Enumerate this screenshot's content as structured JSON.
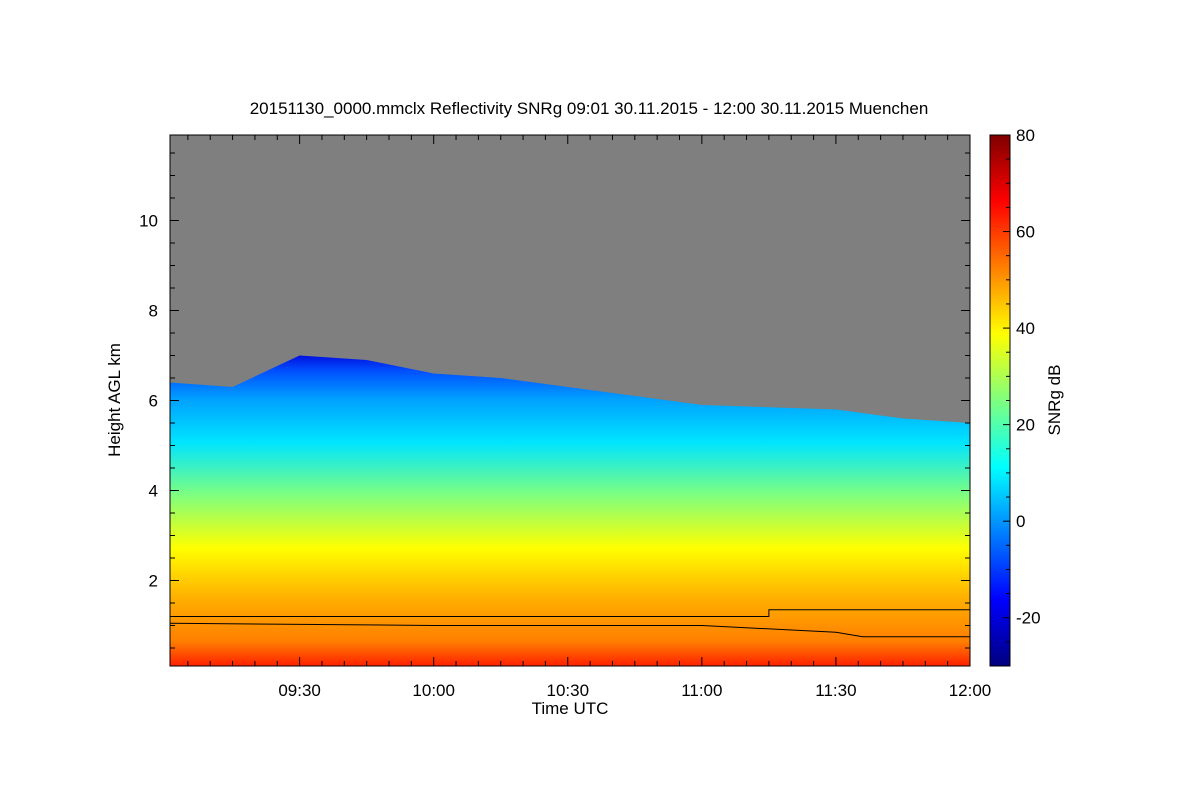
{
  "chart_data": {
    "type": "heatmap",
    "title": "20151130_0000.mmclx Reflectivity SNRg   09:01 30.11.2015 - 12:00 30.11.2015 Muenchen",
    "xlabel": "Time UTC",
    "ylabel": "Height AGL km",
    "colorbar_label": "SNRg dB",
    "x_range": [
      "09:01",
      "12:00"
    ],
    "y_range": [
      0.1,
      11.9
    ],
    "x_ticks": [
      "09:30",
      "10:00",
      "10:30",
      "11:00",
      "11:30",
      "12:00"
    ],
    "y_ticks": [
      "2",
      "4",
      "6",
      "8",
      "10"
    ],
    "y_tick_values": [
      2,
      4,
      6,
      8,
      10
    ],
    "colorbar_range": [
      -30,
      80
    ],
    "colorbar_ticks": [
      "-20",
      "0",
      "20",
      "40",
      "60",
      "80"
    ],
    "colorbar_tick_values": [
      -20,
      0,
      20,
      40,
      60,
      80
    ],
    "colorscale": [
      "#00007f",
      "#0000ff",
      "#007fff",
      "#00ffff",
      "#7fff7f",
      "#ffff00",
      "#ff7f00",
      "#ff0000",
      "#7f0000"
    ],
    "no_signal_color": "#7f7f7f",
    "cloud_top_km": {
      "times": [
        "09:01",
        "09:15",
        "09:30",
        "09:45",
        "10:00",
        "10:15",
        "10:30",
        "10:45",
        "11:00",
        "11:15",
        "11:30",
        "11:45",
        "12:00"
      ],
      "values": [
        6.4,
        6.3,
        7.0,
        6.9,
        6.6,
        6.5,
        6.3,
        6.1,
        5.9,
        5.85,
        5.8,
        5.6,
        5.5
      ]
    },
    "boundary_layer_lines_km": [
      {
        "times": [
          "09:01",
          "11:15",
          "11:15",
          "12:00"
        ],
        "values": [
          1.2,
          1.2,
          1.35,
          1.35
        ]
      },
      {
        "times": [
          "09:01",
          "10:00",
          "11:00",
          "11:30",
          "11:36",
          "12:00"
        ],
        "values": [
          1.05,
          1.0,
          1.0,
          0.85,
          0.75,
          0.75
        ]
      }
    ]
  }
}
